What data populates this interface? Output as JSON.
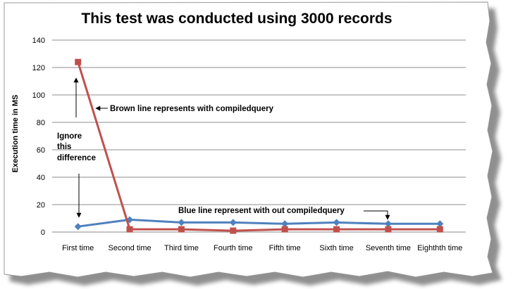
{
  "chart_data": {
    "type": "line",
    "title": "This test was conducted using 3000 records",
    "xlabel": "",
    "ylabel": "Execution time in MS",
    "categories": [
      "First time",
      "Second time",
      "Third time",
      "Fourth time",
      "Fifth time",
      "Sixth time",
      "Seventh time",
      "Eighth time"
    ],
    "category_labels": [
      "First time",
      "Second time",
      "Third time",
      "Fourth time",
      "Fifth time",
      "Sixth time",
      "Seventh time",
      "Eighthth  time"
    ],
    "yticks": [
      0,
      20,
      40,
      60,
      80,
      100,
      120,
      140
    ],
    "ylim": [
      0,
      140
    ],
    "grid": "horizontal",
    "legend": "none",
    "series": [
      {
        "color": "#4f81bd",
        "marker": "diamond",
        "values": [
          4,
          9,
          7,
          7,
          6,
          7,
          6,
          6
        ]
      },
      {
        "color": "#c0504d",
        "marker": "square",
        "values": [
          124,
          2,
          2,
          1,
          2,
          2,
          2,
          2
        ]
      }
    ],
    "annotations": {
      "brown_line": "Brown line  represents with compiledquery",
      "blue_line": "Blue line  represent with out compiledquery",
      "ignore_line1": "Ignore",
      "ignore_line2": "this",
      "ignore_line3": "difference"
    }
  }
}
